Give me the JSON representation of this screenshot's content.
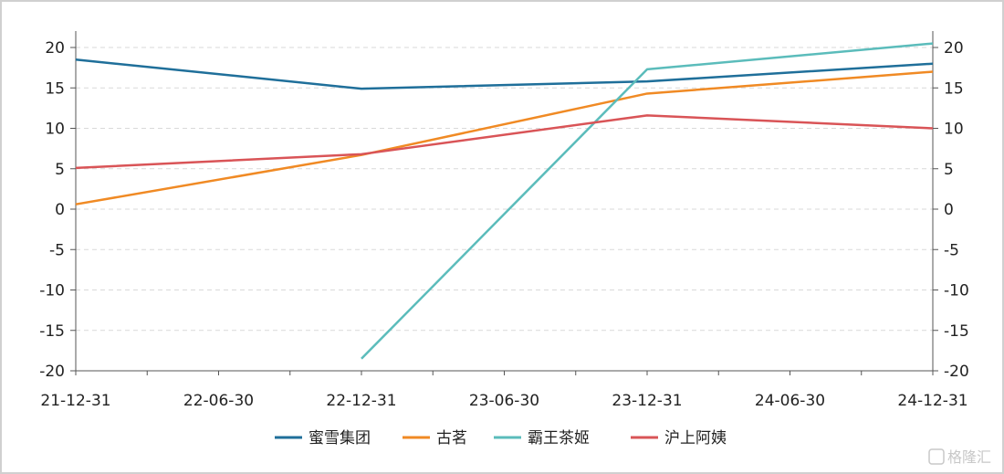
{
  "chart_data": {
    "type": "line",
    "x": [
      "21-12-31",
      "22-06-30",
      "22-12-31",
      "23-06-30",
      "23-12-31",
      "24-06-30",
      "24-12-31"
    ],
    "x_tick_labels": [
      "21-12-31",
      "22-06-30",
      "22-12-31",
      "23-06-30",
      "23-12-31",
      "24-06-30",
      "24-12-31"
    ],
    "ylim": [
      -20,
      20
    ],
    "y_ticks": [
      20,
      15,
      10,
      5,
      0,
      -5,
      -10,
      -15,
      -20
    ],
    "y_tick_labels": [
      "20",
      "15",
      "10",
      "5",
      "0",
      "-5",
      "-10",
      "-15",
      "-20"
    ],
    "grid": "horizontal-dashed",
    "dual_y_axis": true,
    "legend_position": "bottom-center",
    "series": [
      {
        "name": "蜜雪集团",
        "color": "#1f6f9a",
        "points": [
          [
            "21-12-31",
            18.5
          ],
          [
            "22-12-31",
            14.9
          ],
          [
            "23-12-31",
            15.8
          ],
          [
            "24-12-31",
            18.0
          ]
        ]
      },
      {
        "name": "古茗",
        "color": "#f08a24",
        "points": [
          [
            "21-12-31",
            0.6
          ],
          [
            "22-12-31",
            6.7
          ],
          [
            "23-12-31",
            14.3
          ],
          [
            "24-12-31",
            17.0
          ]
        ]
      },
      {
        "name": "霸王茶姬",
        "color": "#5bbcbb",
        "points": [
          [
            "22-12-31",
            -18.5
          ],
          [
            "23-12-31",
            17.3
          ],
          [
            "24-12-31",
            20.5
          ]
        ]
      },
      {
        "name": "沪上阿姨",
        "color": "#d95457",
        "points": [
          [
            "21-12-31",
            5.1
          ],
          [
            "22-12-31",
            6.8
          ],
          [
            "23-12-31",
            11.6
          ],
          [
            "24-12-31",
            10.0
          ]
        ]
      }
    ]
  },
  "watermark": {
    "icon": "gelonghui-logo-icon",
    "text": "格隆汇"
  }
}
